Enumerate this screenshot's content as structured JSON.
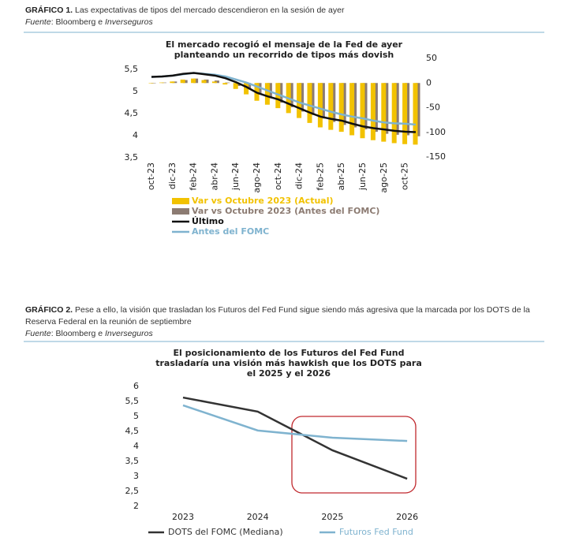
{
  "chart_data": [
    {
      "type": "combo",
      "label": "GRÁFICO 1.",
      "caption": "Las expectativas de tipos del mercado descendieron en la sesión de ayer",
      "source": {
        "label": "Fuente",
        "text": ": Bloomberg e ",
        "publisher": "Inverseguros"
      },
      "title": [
        "El mercado recogió el mensaje de la Fed de ayer",
        "planteando un recorrido de tipos más dovish"
      ],
      "categories": [
        "oct-23",
        null,
        "dic-23",
        null,
        "feb-24",
        null,
        "abr-24",
        null,
        "jun-24",
        null,
        "ago-24",
        null,
        "oct-24",
        null,
        "dic-24",
        null,
        "feb-25",
        null,
        "abr-25",
        null,
        "jun-25",
        null,
        "ago-25",
        null,
        "oct-25",
        null
      ],
      "ylim": [
        3.5,
        5.5
      ],
      "yticks": [
        {
          "value": 3.5,
          "label": "3,5"
        },
        4,
        {
          "value": 4.5,
          "label": "4,5"
        },
        5,
        {
          "value": 5.5,
          "label": "5,5"
        }
      ],
      "y2lim": [
        -150,
        50
      ],
      "y2ticks": [
        -150,
        -100,
        -50,
        0,
        50
      ],
      "series": [
        {
          "name": "Var vs Octubre 2023 (Actual)",
          "type": "bar",
          "axis": "y2",
          "color": "#f2c200",
          "values": [
            0,
            1,
            3,
            7,
            9,
            6,
            3,
            -3,
            -12,
            -23,
            -36,
            -44,
            -51,
            -61,
            -71,
            -81,
            -90,
            -95,
            -99,
            -106,
            -112,
            -116,
            -119,
            -122,
            -124,
            -125
          ]
        },
        {
          "name": "Var vs  Octubre 2023 (Antes del FOMC)",
          "type": "bar",
          "axis": "y2",
          "color": "#8c7b72",
          "values": [
            0,
            1,
            3,
            6,
            9,
            7,
            5,
            1,
            -6,
            -13,
            -22,
            -31,
            -40,
            -49,
            -58,
            -65,
            -72,
            -79,
            -85,
            -90,
            -94,
            -99,
            -103,
            -105,
            -106,
            -108
          ]
        },
        {
          "name": "Último",
          "type": "line",
          "color": "#111111",
          "values": [
            5.33,
            5.34,
            5.36,
            5.4,
            5.42,
            5.39,
            5.36,
            5.3,
            5.21,
            5.1,
            4.97,
            4.89,
            4.82,
            4.72,
            4.62,
            4.52,
            4.43,
            4.38,
            4.34,
            4.27,
            4.21,
            4.17,
            4.14,
            4.11,
            4.09,
            4.08
          ]
        },
        {
          "name": "Antes del FOMC",
          "type": "line",
          "color": "#7fb3cf",
          "values": [
            5.33,
            5.34,
            5.36,
            5.39,
            5.42,
            5.4,
            5.38,
            5.34,
            5.27,
            5.2,
            5.11,
            5.02,
            4.93,
            4.84,
            4.75,
            4.68,
            4.61,
            4.54,
            4.48,
            4.43,
            4.39,
            4.34,
            4.3,
            4.28,
            4.27,
            4.25
          ]
        }
      ]
    },
    {
      "type": "line",
      "label": "GRÁFICO 2.",
      "caption": "Pese a ello, la visión que trasladan los Futuros del Fed Fund sigue siendo más agresiva que la marcada por los DOTS de la Reserva Federal en la reunión de septiembre",
      "source": {
        "label": "Fuente",
        "text": ": Bloomberg e ",
        "publisher": "Inverseguros"
      },
      "title": [
        "El posicionamiento de los Futuros del Fed Fund",
        "trasladaría una visión más hawkish que los DOTS para",
        "el 2025 y el 2026"
      ],
      "categories": [
        "2023",
        "2024",
        "2025",
        "2026"
      ],
      "ylim": [
        2,
        6
      ],
      "yticks": [
        2,
        {
          "value": 2.5,
          "label": "2,5"
        },
        3,
        {
          "value": 3.5,
          "label": "3,5"
        },
        4,
        {
          "value": 4.5,
          "label": "4,5"
        },
        5,
        {
          "value": 5.5,
          "label": "5,5"
        },
        6
      ],
      "series": [
        {
          "name": "DOTS del FOMC (Mediana)",
          "color": "#333333",
          "values": [
            5.63,
            5.16,
            3.87,
            2.92
          ]
        },
        {
          "name": "Futuros Fed Fund",
          "color": "#7fb3cf",
          "values": [
            5.37,
            4.53,
            4.29,
            4.18
          ]
        }
      ]
    }
  ]
}
